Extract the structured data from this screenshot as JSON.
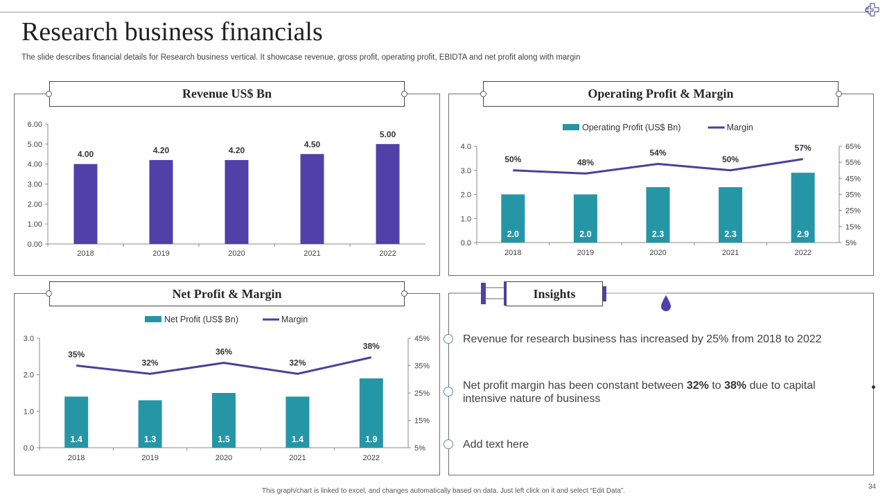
{
  "title": "Research business financials",
  "subtitle": "The slide describes financial details for Research business vertical. It showcase revenue, gross profit, operating profit, EBIDTA and net profit along with margin",
  "footer": "This graph/chart is linked to excel, and changes automatically based on data. Just left click on it and select “Edit Data”.",
  "page_number": "34",
  "colors": {
    "purple": "#5040a8",
    "teal": "#2596a6",
    "line": "#4a3f9c"
  },
  "panels": {
    "revenue_title": "Revenue US$ Bn",
    "operating_title": "Operating Profit & Margin",
    "net_title": "Net Profit & Margin",
    "insights_title": "Insights"
  },
  "insights": {
    "item1": "Revenue for research business has increased by 25% from 2018 to 2022",
    "item2_pre": "Net profit margin has been constant between ",
    "item2_b1": "32%",
    "item2_mid": " to ",
    "item2_b2": "38%",
    "item2_post": " due to capital intensive nature of business",
    "item3": "Add text here"
  },
  "chart_data": [
    {
      "type": "bar",
      "title": "Revenue US$ Bn",
      "categories": [
        "2018",
        "2019",
        "2020",
        "2021",
        "2022"
      ],
      "values": [
        4.0,
        4.2,
        4.2,
        4.5,
        5.0
      ],
      "labels": [
        "4.00",
        "4.20",
        "4.20",
        "4.50",
        "5.00"
      ],
      "yticks": [
        "0.00",
        "1.00",
        "2.00",
        "3.00",
        "4.00",
        "5.00",
        "6.00"
      ],
      "ylim": [
        0,
        6
      ]
    },
    {
      "type": "bar",
      "title": "Operating Profit & Margin",
      "categories": [
        "2018",
        "2019",
        "2020",
        "2021",
        "2022"
      ],
      "legend": [
        "Operating Profit  (US$ Bn)",
        "Margin"
      ],
      "bar_values": [
        2.0,
        2.0,
        2.3,
        2.3,
        2.9
      ],
      "bar_labels": [
        "2.0",
        "2.0",
        "2.3",
        "2.3",
        "2.9"
      ],
      "line_values": [
        50,
        48,
        54,
        50,
        57
      ],
      "line_labels": [
        "50%",
        "48%",
        "54%",
        "50%",
        "57%"
      ],
      "yticks_left": [
        "0.0",
        "1.0",
        "2.0",
        "3.0",
        "4.0"
      ],
      "ylim_left": [
        0,
        4
      ],
      "yticks_right": [
        "5%",
        "15%",
        "25%",
        "35%",
        "45%",
        "55%",
        "65%"
      ],
      "ylim_right": [
        5,
        65
      ]
    },
    {
      "type": "bar",
      "title": "Net Profit & Margin",
      "categories": [
        "2018",
        "2019",
        "2020",
        "2021",
        "2022"
      ],
      "legend": [
        "Net Profit  (US$ Bn)",
        "Margin"
      ],
      "bar_values": [
        1.4,
        1.3,
        1.5,
        1.4,
        1.9
      ],
      "bar_labels": [
        "1.4",
        "1.3",
        "1.5",
        "1.4",
        "1.9"
      ],
      "line_values": [
        35,
        32,
        36,
        32,
        38
      ],
      "line_labels": [
        "35%",
        "32%",
        "36%",
        "32%",
        "38%"
      ],
      "yticks_left": [
        "0.0",
        "1.0",
        "2.0",
        "3.0"
      ],
      "ylim_left": [
        0,
        3
      ],
      "yticks_right": [
        "5%",
        "15%",
        "25%",
        "35%",
        "45%"
      ],
      "ylim_right": [
        5,
        45
      ]
    }
  ]
}
